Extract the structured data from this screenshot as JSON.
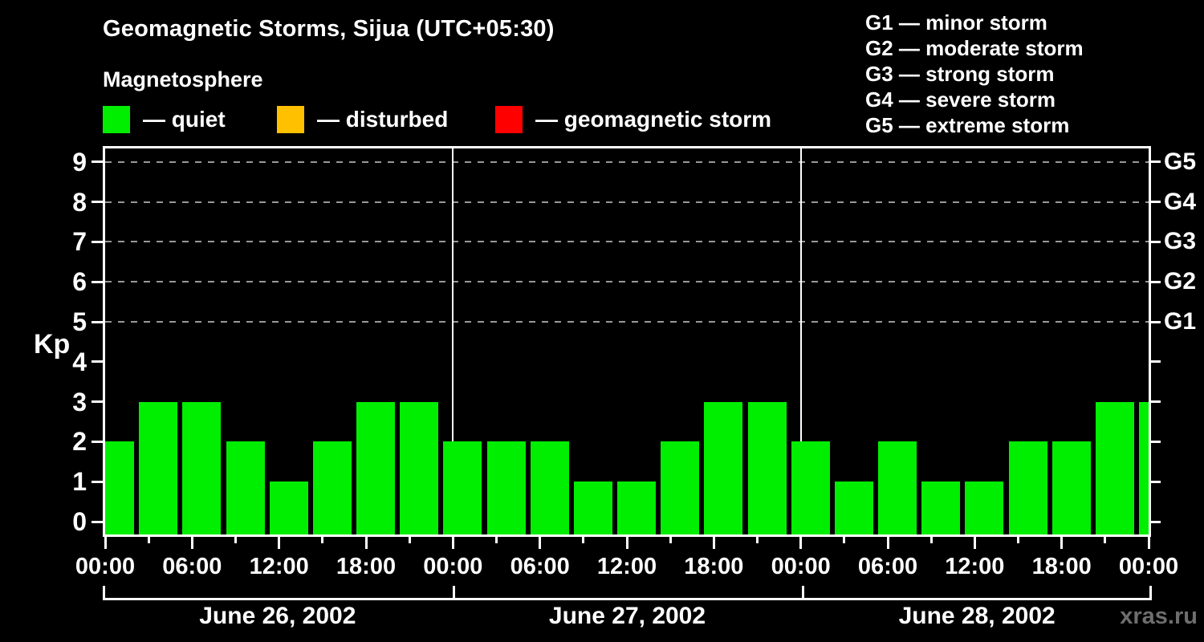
{
  "header": {
    "title": "Geomagnetic Storms, Sijua (UTC+05:30)",
    "subtitle": "Magnetosphere"
  },
  "legend": {
    "items": [
      {
        "label": "— quiet",
        "color": "#00EE00"
      },
      {
        "label": "— disturbed",
        "color": "#FFC000"
      },
      {
        "label": "— geomagnetic storm",
        "color": "#FF0000"
      }
    ]
  },
  "g_legend": {
    "items": [
      "G1 — minor storm",
      "G2 — moderate storm",
      "G3 — strong storm",
      "G4 — severe storm",
      "G5 — extreme storm"
    ]
  },
  "footer": {
    "watermark": "xras.ru"
  },
  "chart_data": {
    "type": "bar",
    "title": "Geomagnetic Storms, Sijua (UTC+05:30)",
    "ylabel": "Kp",
    "background": "#000000",
    "bar_color": "#00EE00",
    "axis_color": "#FFFFFF",
    "grid_color": "#999999",
    "grid": "dashed horizontal lines at Kp 5–9 only",
    "ylim": [
      0,
      9.4
    ],
    "yticks": [
      0,
      1,
      2,
      3,
      4,
      5,
      6,
      7,
      8,
      9
    ],
    "x_span_hours": 72,
    "x_major_tick_hours": 6,
    "x_minor_tick_hours": 3,
    "bar_interval_hours": 3,
    "time_labels": [
      "00:00",
      "06:00",
      "12:00",
      "18:00"
    ],
    "g_levels": [
      {
        "kp": 5,
        "label": "G1"
      },
      {
        "kp": 6,
        "label": "G2"
      },
      {
        "kp": 7,
        "label": "G3"
      },
      {
        "kp": 8,
        "label": "G4"
      },
      {
        "kp": 9,
        "label": "G5"
      }
    ],
    "days": [
      {
        "date": "June 26, 2002",
        "kp": [
          2,
          3,
          3,
          2,
          1,
          2,
          3,
          3
        ]
      },
      {
        "date": "June 27, 2002",
        "kp": [
          2,
          2,
          2,
          1,
          1,
          2,
          3,
          3
        ]
      },
      {
        "date": "June 28, 2002",
        "kp": [
          2,
          1,
          2,
          1,
          1,
          2,
          2,
          3
        ]
      }
    ],
    "next_interval_kp": 3
  }
}
